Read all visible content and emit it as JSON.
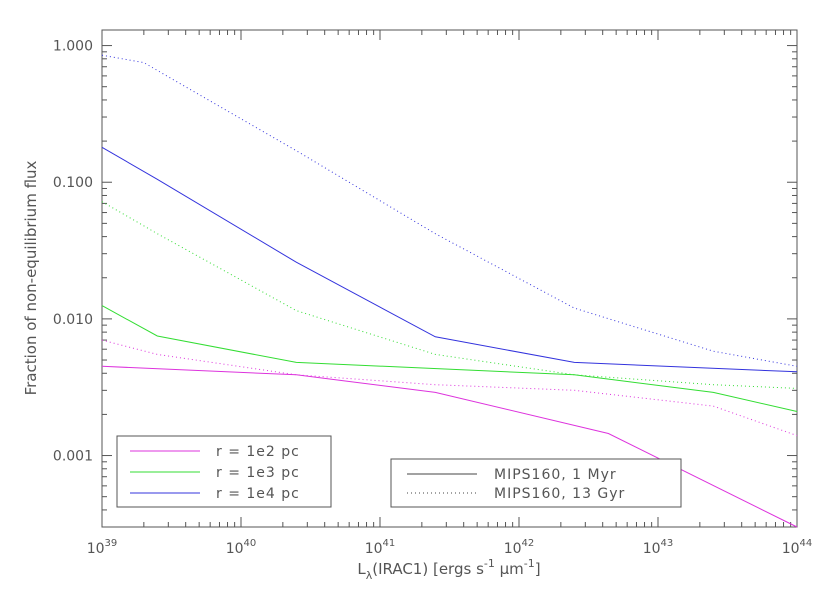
{
  "chart_data": {
    "type": "line",
    "title": "",
    "xlabel": "L_λ(IRAC1) [ergs s^-1 μm^-1]",
    "ylabel": "Fraction of non-equilibrium flux",
    "xscale": "log",
    "yscale": "log",
    "xlim": [
      1e+39,
      1e+44
    ],
    "ylim": [
      0.0003,
      1.3
    ],
    "x_tick_labels": [
      {
        "base": "10",
        "exp": "39"
      },
      {
        "base": "10",
        "exp": "40"
      },
      {
        "base": "10",
        "exp": "41"
      },
      {
        "base": "10",
        "exp": "42"
      },
      {
        "base": "10",
        "exp": "43"
      },
      {
        "base": "10",
        "exp": "44"
      }
    ],
    "y_tick_labels": [
      "0.001",
      "0.010",
      "0.100",
      "1.000"
    ],
    "y_tick_values": [
      0.001,
      0.01,
      0.1,
      1.0
    ],
    "grid": false,
    "series": [
      {
        "name": "r = 1e2 pc",
        "color": "#dd33dd",
        "style": "solid",
        "x": [
          1e+39,
          2.5e+40,
          2.5e+41,
          4.4e+42,
          1e+44
        ],
        "y": [
          0.0045,
          0.0039,
          0.0029,
          0.00145,
          0.00027
        ]
      },
      {
        "name": "r = 1e3 pc",
        "color": "#33dd33",
        "style": "solid",
        "x": [
          1e+39,
          2.5e+39,
          2.5e+40,
          2.5e+42,
          2.5e+43,
          1e+44
        ],
        "y": [
          0.0125,
          0.0075,
          0.0048,
          0.0039,
          0.0029,
          0.0021
        ]
      },
      {
        "name": "r = 1e4 pc",
        "color": "#3333dd",
        "style": "solid",
        "x": [
          1e+39,
          2.5e+39,
          2.5e+40,
          2.5e+41,
          2.5e+42,
          1e+44
        ],
        "y": [
          0.18,
          0.105,
          0.026,
          0.0074,
          0.0048,
          0.0041
        ]
      },
      {
        "color": "#dd33dd",
        "style": "dotted",
        "x": [
          1e+39,
          2.5e+39,
          2.5e+40,
          2.5e+41,
          2.5e+42,
          2.5e+43,
          1e+44
        ],
        "y": [
          0.007,
          0.0055,
          0.0039,
          0.0033,
          0.003,
          0.0023,
          0.0014
        ]
      },
      {
        "color": "#33dd33",
        "style": "dotted",
        "x": [
          1e+39,
          2.5e+39,
          2.5e+40,
          2.5e+41,
          2.5e+42,
          2.5e+43,
          1e+44
        ],
        "y": [
          0.072,
          0.042,
          0.0115,
          0.0055,
          0.0039,
          0.0033,
          0.0031
        ]
      },
      {
        "color": "#3333dd",
        "style": "dotted",
        "x": [
          1e+39,
          2e+39,
          2.5e+40,
          2.5e+41,
          2.5e+42,
          2.5e+43,
          1e+44
        ],
        "y": [
          0.85,
          0.75,
          0.17,
          0.042,
          0.012,
          0.0058,
          0.0045
        ]
      }
    ],
    "legend_colors": {
      "title": "",
      "entries": [
        {
          "label": "r = 1e2 pc",
          "color": "#dd33dd"
        },
        {
          "label": "r = 1e3 pc",
          "color": "#33dd33"
        },
        {
          "label": "r = 1e4 pc",
          "color": "#3333dd"
        }
      ],
      "placement": "bottom-left"
    },
    "legend_styles": {
      "entries": [
        {
          "label": "MIPS160, 1 Myr",
          "style": "solid"
        },
        {
          "label": "MIPS160, 13 Gyr",
          "style": "dotted"
        }
      ],
      "placement": "bottom-center"
    }
  },
  "colors": {
    "axis": "#555555",
    "background": "#ffffff",
    "style_legend_line": "#444444"
  }
}
